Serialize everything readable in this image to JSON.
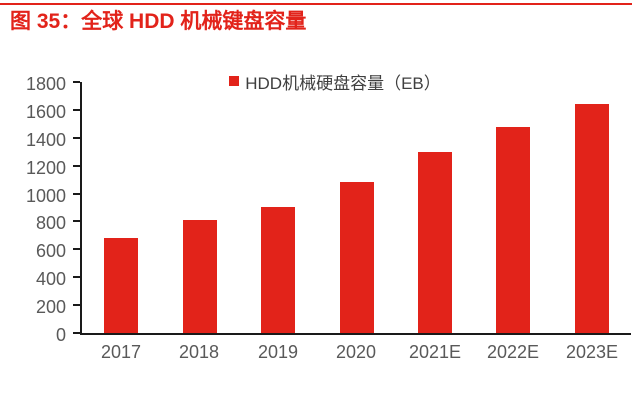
{
  "figure": {
    "title": "图 35：全球 HDD 机械键盘容量"
  },
  "chart_data": {
    "type": "bar",
    "title": "",
    "xlabel": "",
    "ylabel": "",
    "legend": "HDD机械硬盘容量（EB）",
    "legend_position": "top-center",
    "categories": [
      "2017",
      "2018",
      "2019",
      "2020",
      "2021E",
      "2022E",
      "2023E"
    ],
    "values": [
      680,
      810,
      905,
      1085,
      1300,
      1475,
      1640
    ],
    "ylim": [
      0,
      1800
    ],
    "ytick_step": 200,
    "yticks": [
      0,
      200,
      400,
      600,
      800,
      1000,
      1200,
      1400,
      1600,
      1800
    ],
    "grid": false,
    "bar_color": "#e2231a"
  },
  "colors": {
    "accent_red": "#e2231a",
    "axis_text": "#595959",
    "legend_text": "#3f3f3f",
    "axis_line": "#1a1a1a",
    "background": "#ffffff"
  }
}
